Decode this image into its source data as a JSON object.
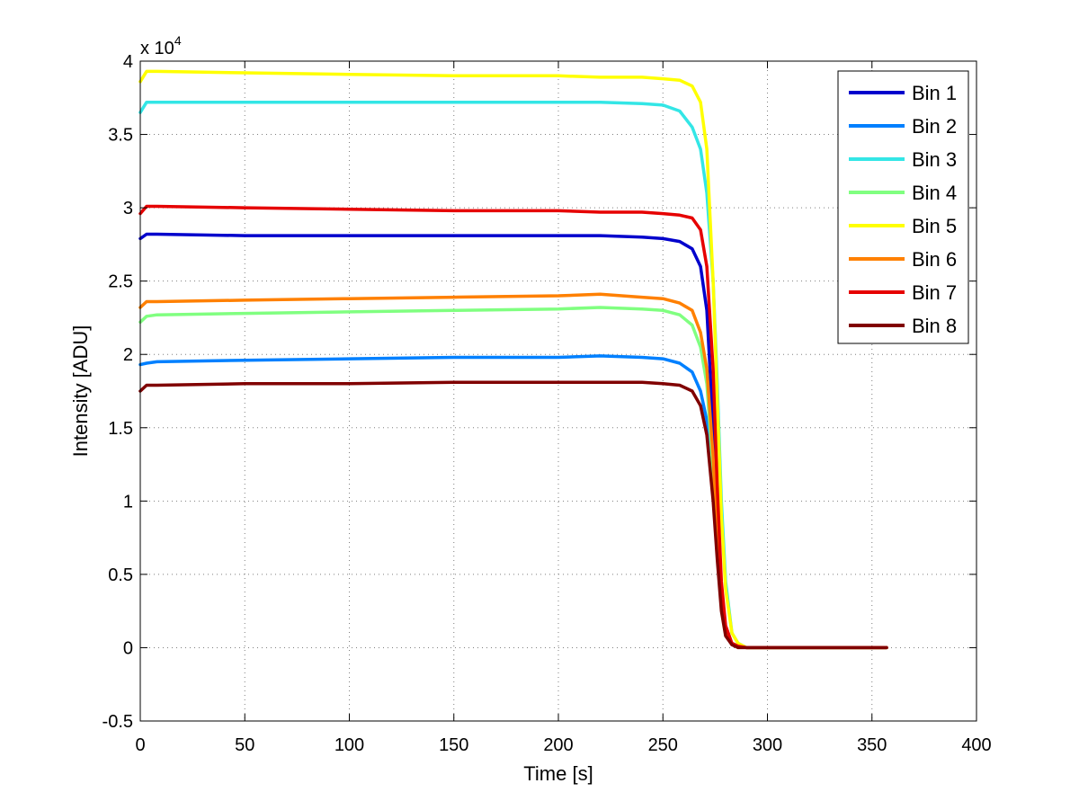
{
  "chart_data": {
    "type": "line",
    "xlabel": "Time [s]",
    "ylabel": "Intensity [ADU]",
    "y_multiplier": "x 10",
    "y_multiplier_exp": "4",
    "xlim": [
      0,
      400
    ],
    "ylim": [
      -0.5,
      4
    ],
    "xticks": [
      "0",
      "50",
      "100",
      "150",
      "200",
      "250",
      "300",
      "350",
      "400"
    ],
    "yticks": [
      "-0.5",
      "0",
      "0.5",
      "1",
      "1.5",
      "2",
      "2.5",
      "3",
      "3.5",
      "4"
    ],
    "grid": true,
    "legend_position": "top-right",
    "x": [
      0,
      3,
      8,
      50,
      100,
      150,
      200,
      220,
      240,
      250,
      258,
      264,
      268,
      271,
      274,
      276,
      278,
      280,
      283,
      286,
      290,
      300,
      320,
      357
    ],
    "series": [
      {
        "name": "Bin 1",
        "color": "#0000cc",
        "values": [
          2.79,
          2.82,
          2.82,
          2.81,
          2.81,
          2.81,
          2.81,
          2.81,
          2.8,
          2.79,
          2.77,
          2.72,
          2.6,
          2.3,
          1.5,
          0.8,
          0.3,
          0.1,
          0.03,
          0.01,
          0.0,
          0.0,
          0.0,
          0.0
        ]
      },
      {
        "name": "Bin 2",
        "color": "#0080ff",
        "values": [
          1.93,
          1.94,
          1.95,
          1.96,
          1.97,
          1.98,
          1.98,
          1.99,
          1.98,
          1.97,
          1.94,
          1.88,
          1.75,
          1.55,
          1.1,
          0.7,
          0.3,
          0.1,
          0.03,
          0.01,
          0.0,
          0.0,
          0.0,
          0.0
        ]
      },
      {
        "name": "Bin 3",
        "color": "#33e6e6",
        "values": [
          3.65,
          3.72,
          3.72,
          3.72,
          3.72,
          3.72,
          3.72,
          3.72,
          3.71,
          3.7,
          3.66,
          3.55,
          3.4,
          3.1,
          2.5,
          1.8,
          1.0,
          0.45,
          0.1,
          0.03,
          0.0,
          0.0,
          0.0,
          0.0
        ]
      },
      {
        "name": "Bin 4",
        "color": "#80ff80",
        "values": [
          2.22,
          2.26,
          2.27,
          2.28,
          2.29,
          2.3,
          2.31,
          2.32,
          2.31,
          2.3,
          2.27,
          2.2,
          2.05,
          1.8,
          1.2,
          0.7,
          0.3,
          0.1,
          0.03,
          0.01,
          0.0,
          0.0,
          0.0,
          0.0
        ]
      },
      {
        "name": "Bin 5",
        "color": "#ffff00",
        "values": [
          3.86,
          3.93,
          3.93,
          3.92,
          3.91,
          3.9,
          3.9,
          3.89,
          3.89,
          3.88,
          3.87,
          3.83,
          3.72,
          3.4,
          2.5,
          1.7,
          0.9,
          0.4,
          0.1,
          0.03,
          0.0,
          0.0,
          0.0,
          0.0
        ]
      },
      {
        "name": "Bin 6",
        "color": "#ff8000",
        "values": [
          2.32,
          2.36,
          2.36,
          2.37,
          2.38,
          2.39,
          2.4,
          2.41,
          2.39,
          2.38,
          2.35,
          2.3,
          2.15,
          1.9,
          1.3,
          0.7,
          0.3,
          0.1,
          0.03,
          0.01,
          0.0,
          0.0,
          0.0,
          0.0
        ]
      },
      {
        "name": "Bin 7",
        "color": "#e60000",
        "values": [
          2.96,
          3.01,
          3.01,
          3.0,
          2.99,
          2.98,
          2.98,
          2.97,
          2.97,
          2.96,
          2.95,
          2.93,
          2.85,
          2.6,
          1.9,
          1.1,
          0.45,
          0.15,
          0.03,
          0.01,
          0.0,
          0.0,
          0.0,
          0.0
        ]
      },
      {
        "name": "Bin 8",
        "color": "#800000",
        "values": [
          1.75,
          1.79,
          1.79,
          1.8,
          1.8,
          1.81,
          1.81,
          1.81,
          1.81,
          1.8,
          1.79,
          1.75,
          1.65,
          1.45,
          1.0,
          0.6,
          0.25,
          0.08,
          0.02,
          0.0,
          0.0,
          0.0,
          0.0,
          0.0
        ]
      }
    ]
  }
}
